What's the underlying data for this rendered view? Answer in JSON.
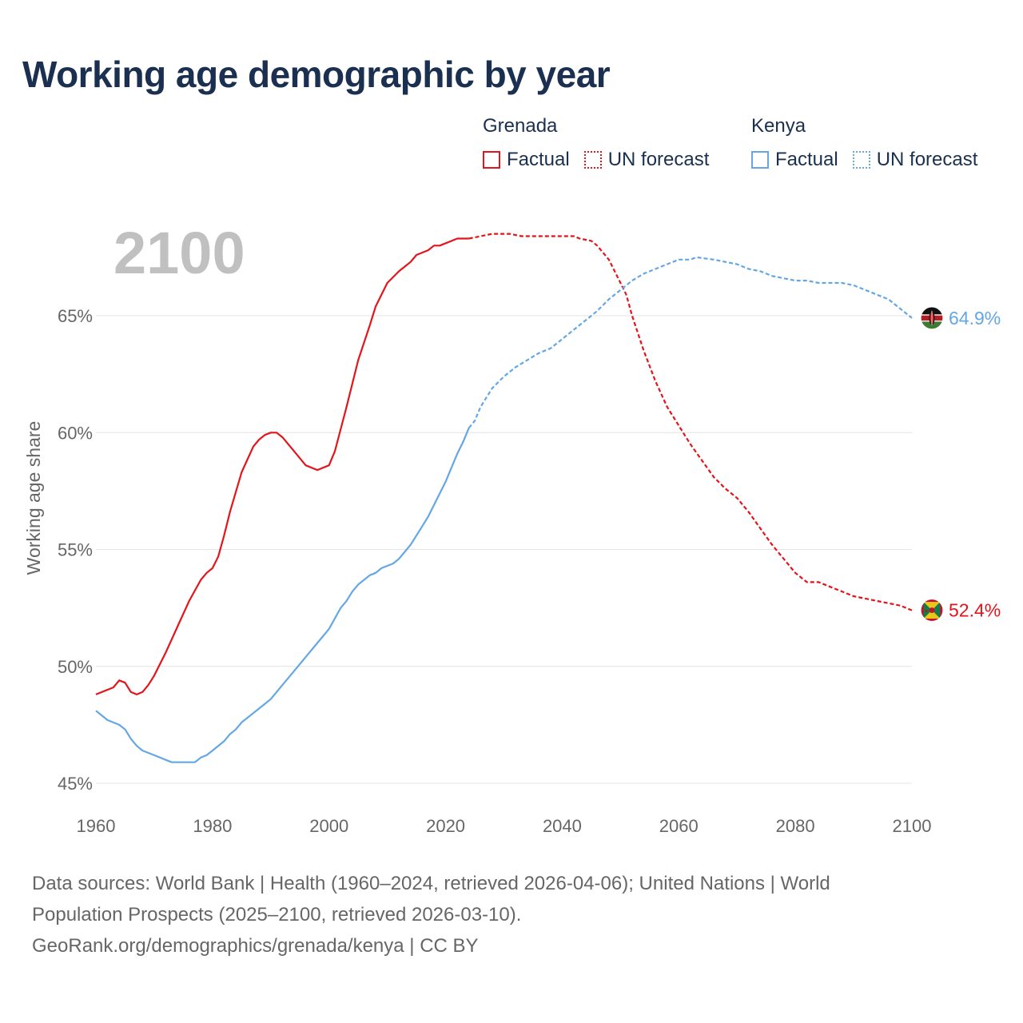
{
  "title": "Working age demographic by year",
  "legend": {
    "groups": [
      {
        "country": "Grenada",
        "color": "#e4141b",
        "factual_label": "Factual",
        "forecast_label": "UN forecast"
      },
      {
        "country": "Kenya",
        "color": "#64a7e4",
        "factual_label": "Factual",
        "forecast_label": "UN forecast"
      }
    ]
  },
  "footer": {
    "line1": "Data sources: World Bank | Health (1960–2024, retrieved 2026-04-06); United Nations | World",
    "line2": "Population Prospects (2025–2100, retrieved 2026-03-10).",
    "line3": "GeoRank.org/demographics/grenada/kenya | CC BY"
  },
  "chart_data": {
    "type": "line",
    "title": "Working age demographic by year",
    "xlabel": "",
    "ylabel": "Working age share",
    "year_display": "2100",
    "xlim": [
      1960,
      2100
    ],
    "ylim": [
      45,
      68.5
    ],
    "x_ticks": [
      1960,
      1980,
      2000,
      2020,
      2040,
      2060,
      2080,
      2100
    ],
    "x_tick_labels": [
      "1960",
      "1980",
      "2000",
      "2020",
      "2040",
      "2060",
      "2080",
      "2100"
    ],
    "y_ticks": [
      45,
      50,
      55,
      60,
      65
    ],
    "y_tick_labels": [
      "45%",
      "50%",
      "55%",
      "60%",
      "65%"
    ],
    "grid": true,
    "forecast_start_year": 2024,
    "series": [
      {
        "name": "Grenada",
        "color": "#e4141b",
        "end_label": "52.4%",
        "flag": "grenada-flag",
        "points": [
          [
            1960,
            48.8
          ],
          [
            1963,
            49.1
          ],
          [
            1964,
            49.4
          ],
          [
            1965,
            49.3
          ],
          [
            1966,
            48.9
          ],
          [
            1967,
            48.8
          ],
          [
            1968,
            48.9
          ],
          [
            1969,
            49.2
          ],
          [
            1970,
            49.6
          ],
          [
            1972,
            50.6
          ],
          [
            1974,
            51.7
          ],
          [
            1976,
            52.8
          ],
          [
            1978,
            53.7
          ],
          [
            1979,
            54.0
          ],
          [
            1980,
            54.2
          ],
          [
            1981,
            54.7
          ],
          [
            1982,
            55.6
          ],
          [
            1983,
            56.6
          ],
          [
            1985,
            58.3
          ],
          [
            1987,
            59.4
          ],
          [
            1988,
            59.7
          ],
          [
            1989,
            59.9
          ],
          [
            1990,
            60.0
          ],
          [
            1991,
            60.0
          ],
          [
            1992,
            59.8
          ],
          [
            1994,
            59.2
          ],
          [
            1996,
            58.6
          ],
          [
            1998,
            58.4
          ],
          [
            2000,
            58.6
          ],
          [
            2001,
            59.2
          ],
          [
            2003,
            61.1
          ],
          [
            2005,
            63.1
          ],
          [
            2007,
            64.6
          ],
          [
            2008,
            65.4
          ],
          [
            2010,
            66.4
          ],
          [
            2012,
            66.9
          ],
          [
            2014,
            67.3
          ],
          [
            2015,
            67.6
          ],
          [
            2017,
            67.8
          ],
          [
            2018,
            68.0
          ],
          [
            2019,
            68.0
          ],
          [
            2022,
            68.3
          ],
          [
            2024,
            68.3
          ],
          [
            2028,
            68.5
          ],
          [
            2031,
            68.5
          ],
          [
            2033,
            68.4
          ],
          [
            2038,
            68.4
          ],
          [
            2042,
            68.4
          ],
          [
            2043,
            68.3
          ],
          [
            2045,
            68.2
          ],
          [
            2046,
            68.0
          ],
          [
            2048,
            67.4
          ],
          [
            2050,
            66.4
          ],
          [
            2051,
            65.9
          ],
          [
            2052,
            65.0
          ],
          [
            2054,
            63.5
          ],
          [
            2056,
            62.2
          ],
          [
            2058,
            61.1
          ],
          [
            2060,
            60.3
          ],
          [
            2062,
            59.5
          ],
          [
            2064,
            58.8
          ],
          [
            2066,
            58.1
          ],
          [
            2068,
            57.6
          ],
          [
            2070,
            57.2
          ],
          [
            2072,
            56.6
          ],
          [
            2074,
            55.9
          ],
          [
            2076,
            55.2
          ],
          [
            2078,
            54.6
          ],
          [
            2080,
            54.0
          ],
          [
            2082,
            53.6
          ],
          [
            2084,
            53.6
          ],
          [
            2086,
            53.4
          ],
          [
            2088,
            53.2
          ],
          [
            2090,
            53.0
          ],
          [
            2094,
            52.8
          ],
          [
            2096,
            52.7
          ],
          [
            2098,
            52.6
          ],
          [
            2100,
            52.4
          ]
        ]
      },
      {
        "name": "Kenya",
        "color": "#64a7e4",
        "end_label": "64.9%",
        "flag": "kenya-flag",
        "points": [
          [
            1960,
            48.1
          ],
          [
            1962,
            47.7
          ],
          [
            1964,
            47.5
          ],
          [
            1965,
            47.3
          ],
          [
            1966,
            46.9
          ],
          [
            1967,
            46.6
          ],
          [
            1968,
            46.4
          ],
          [
            1970,
            46.2
          ],
          [
            1972,
            46.0
          ],
          [
            1973,
            45.9
          ],
          [
            1977,
            45.9
          ],
          [
            1978,
            46.1
          ],
          [
            1979,
            46.2
          ],
          [
            1980,
            46.4
          ],
          [
            1982,
            46.8
          ],
          [
            1983,
            47.1
          ],
          [
            1984,
            47.3
          ],
          [
            1985,
            47.6
          ],
          [
            1987,
            48.0
          ],
          [
            1989,
            48.4
          ],
          [
            1990,
            48.6
          ],
          [
            1992,
            49.2
          ],
          [
            1994,
            49.8
          ],
          [
            1996,
            50.4
          ],
          [
            1998,
            51.0
          ],
          [
            2000,
            51.6
          ],
          [
            2002,
            52.5
          ],
          [
            2003,
            52.8
          ],
          [
            2004,
            53.2
          ],
          [
            2005,
            53.5
          ],
          [
            2007,
            53.9
          ],
          [
            2008,
            54.0
          ],
          [
            2009,
            54.2
          ],
          [
            2011,
            54.4
          ],
          [
            2012,
            54.6
          ],
          [
            2014,
            55.2
          ],
          [
            2016,
            56.0
          ],
          [
            2017,
            56.4
          ],
          [
            2019,
            57.4
          ],
          [
            2020,
            57.9
          ],
          [
            2022,
            59.1
          ],
          [
            2023,
            59.6
          ],
          [
            2024,
            60.2
          ],
          [
            2025,
            60.5
          ],
          [
            2026,
            61.1
          ],
          [
            2028,
            61.9
          ],
          [
            2030,
            62.4
          ],
          [
            2032,
            62.8
          ],
          [
            2034,
            63.1
          ],
          [
            2036,
            63.4
          ],
          [
            2038,
            63.6
          ],
          [
            2040,
            64.0
          ],
          [
            2042,
            64.4
          ],
          [
            2044,
            64.8
          ],
          [
            2046,
            65.2
          ],
          [
            2048,
            65.7
          ],
          [
            2050,
            66.1
          ],
          [
            2052,
            66.5
          ],
          [
            2054,
            66.8
          ],
          [
            2056,
            67.0
          ],
          [
            2058,
            67.2
          ],
          [
            2060,
            67.4
          ],
          [
            2062,
            67.4
          ],
          [
            2063,
            67.5
          ],
          [
            2066,
            67.4
          ],
          [
            2070,
            67.2
          ],
          [
            2072,
            67.0
          ],
          [
            2074,
            66.9
          ],
          [
            2076,
            66.7
          ],
          [
            2078,
            66.6
          ],
          [
            2080,
            66.5
          ],
          [
            2082,
            66.5
          ],
          [
            2084,
            66.4
          ],
          [
            2088,
            66.4
          ],
          [
            2090,
            66.3
          ],
          [
            2092,
            66.1
          ],
          [
            2094,
            65.9
          ],
          [
            2096,
            65.7
          ],
          [
            2098,
            65.3
          ],
          [
            2100,
            64.9
          ]
        ]
      }
    ]
  }
}
